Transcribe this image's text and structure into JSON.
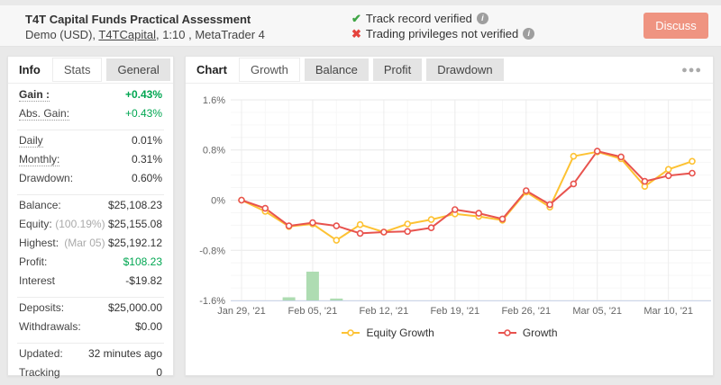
{
  "icons": {
    "check": "✔",
    "cross": "✖",
    "info": "i",
    "ellipsis": "●●●"
  },
  "header": {
    "title": "T4T Capital Funds Practical Assessment",
    "subtitle_prefix": "Demo (USD), ",
    "subtitle_link": "T4TCapital",
    "subtitle_suffix": ", 1:10 , MetaTrader 4",
    "verified_text": "Track record verified",
    "not_verified_text": "Trading privileges not verified",
    "discuss_label": "Discuss",
    "discuss_color": "#ef9481"
  },
  "info_panel": {
    "label": "Info",
    "tabs": [
      {
        "label": "Stats",
        "active": true
      },
      {
        "label": "General",
        "active": false
      }
    ],
    "rows": [
      {
        "label": "Gain :",
        "value": "+0.43%",
        "dotted": true,
        "bold_label": true,
        "green": true,
        "bold_value": true
      },
      {
        "label": "Abs. Gain:",
        "value": "+0.43%",
        "dotted": true,
        "green": true
      },
      {
        "divider": true
      },
      {
        "label": "Daily",
        "value": "0.01%",
        "dotted": true
      },
      {
        "label": "Monthly:",
        "value": "0.31%",
        "dotted": true
      },
      {
        "label": "Drawdown:",
        "value": "0.60%"
      },
      {
        "divider": true
      },
      {
        "label": "Balance:",
        "value": "$25,108.23"
      },
      {
        "label": "Equity:",
        "muted": "(100.19%) ",
        "value": "$25,155.08"
      },
      {
        "label": "Highest:",
        "muted": "(Mar 05) ",
        "value": "$25,192.12"
      },
      {
        "label": "Profit:",
        "value": "$108.23",
        "green": true
      },
      {
        "label": "Interest",
        "value": "-$19.82"
      },
      {
        "divider": true
      },
      {
        "label": "Deposits:",
        "value": "$25,000.00"
      },
      {
        "label": "Withdrawals:",
        "value": "$0.00"
      },
      {
        "divider": true
      },
      {
        "label": "Updated:",
        "value": "32 minutes ago"
      },
      {
        "label": "Tracking",
        "value": "0"
      }
    ]
  },
  "chart_panel": {
    "label": "Chart",
    "tabs": [
      {
        "label": "Growth",
        "active": true
      },
      {
        "label": "Balance",
        "active": false
      },
      {
        "label": "Profit",
        "active": false
      },
      {
        "label": "Drawdown",
        "active": false
      }
    ]
  },
  "chart_data": {
    "type": "line",
    "title": "Growth",
    "y_unit": "%",
    "ylim": [
      -1.6,
      1.6
    ],
    "grid": true,
    "legend_position": "bottom",
    "y_ticks": [
      {
        "value": 1.6,
        "label": "1.6%"
      },
      {
        "value": 0.8,
        "label": "0.8%"
      },
      {
        "value": 0,
        "label": "0%"
      },
      {
        "value": -0.8,
        "label": "-0.8%"
      },
      {
        "value": -1.6,
        "label": "-1.6%"
      }
    ],
    "num_points": 20,
    "x_tick_indices": [
      0,
      3,
      6,
      9,
      12,
      15,
      18
    ],
    "x_tick_labels": [
      "Jan 29, '21",
      "Feb 05, '21",
      "Feb 12, '21",
      "Feb 19, '21",
      "Feb 26, '21",
      "Mar 05, '21",
      "Mar 10, '21"
    ],
    "series": [
      {
        "name": "Equity Growth",
        "color": "#fdc233",
        "values": [
          0.0,
          -0.18,
          -0.42,
          -0.38,
          -0.64,
          -0.39,
          -0.51,
          -0.38,
          -0.31,
          -0.22,
          -0.26,
          -0.32,
          0.13,
          -0.11,
          0.7,
          0.77,
          0.66,
          0.22,
          0.49,
          0.62
        ]
      },
      {
        "name": "Growth",
        "color": "#e8534e",
        "values": [
          0.0,
          -0.13,
          -0.41,
          -0.36,
          -0.41,
          -0.53,
          -0.51,
          -0.5,
          -0.44,
          -0.15,
          -0.21,
          -0.3,
          0.15,
          -0.07,
          0.26,
          0.78,
          0.69,
          0.3,
          0.39,
          0.43
        ]
      }
    ],
    "bars": {
      "name": "deposit-activity",
      "color": "#aedcb2",
      "items": [
        {
          "x_index": 2,
          "value": 0.05
        },
        {
          "x_index": 3,
          "value": 0.46
        },
        {
          "x_index": 4,
          "value": 0.03
        }
      ]
    }
  }
}
